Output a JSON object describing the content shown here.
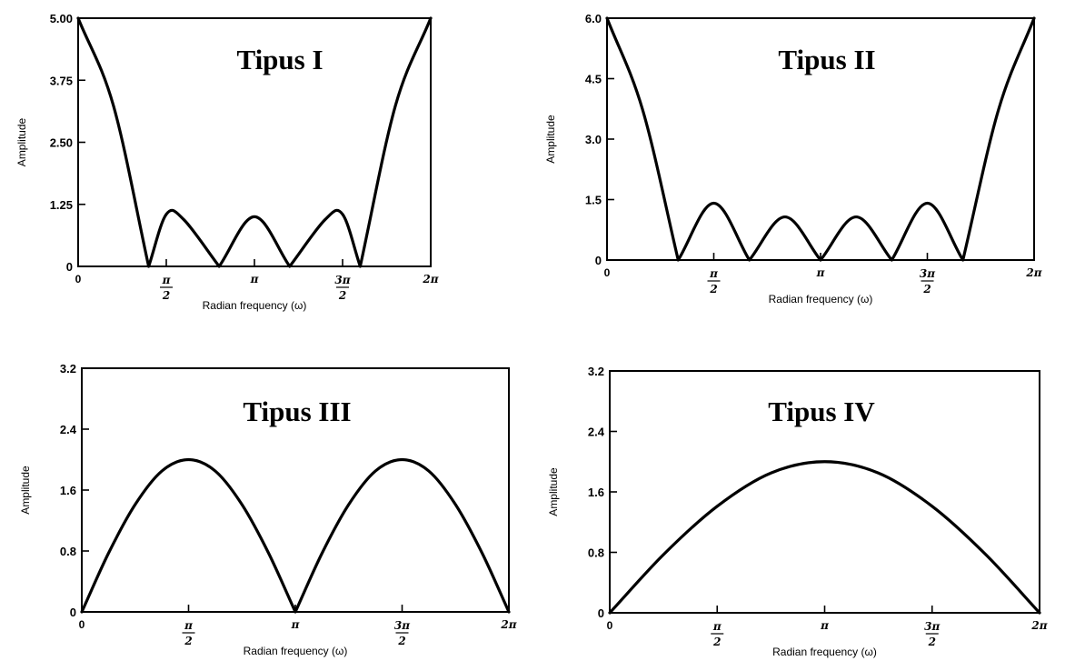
{
  "chart_data": [
    {
      "type": "line",
      "title": "Tipus I",
      "xlabel": "Radian frequency (ω)",
      "ylabel": "Amplitude",
      "xlim": [
        0,
        6.2832
      ],
      "ylim": [
        0,
        5.0
      ],
      "yticks": [
        "0",
        "1.25",
        "2.50",
        "3.75",
        "5.00"
      ],
      "xticks": [
        "0",
        "π/2",
        "π",
        "3π/2",
        "2π"
      ],
      "grid": false,
      "series": [
        {
          "x": [
            0,
            0.6283,
            1.2566,
            1.5708,
            1.885,
            2.5133,
            3.1416,
            3.7699,
            4.3982,
            4.7124,
            5.0265,
            5.6549,
            6.2832
          ],
          "y": [
            5.0,
            3.24,
            0.0,
            1.05,
            0.94,
            0.0,
            1.0,
            0.0,
            0.94,
            1.05,
            0.0,
            3.24,
            5.0
          ]
        }
      ]
    },
    {
      "type": "line",
      "title": "Tipus II",
      "xlabel": "Radian frequency (ω)",
      "ylabel": "Amplitude",
      "xlim": [
        0,
        6.2832
      ],
      "ylim": [
        0,
        6.0
      ],
      "yticks": [
        "0",
        "1.5",
        "3.0",
        "4.5",
        "6.0"
      ],
      "xticks": [
        "0",
        "π/2",
        "π",
        "3π/2",
        "2π"
      ],
      "grid": false,
      "series": [
        {
          "x": [
            0,
            0.5236,
            1.0472,
            1.5708,
            2.0944,
            2.618,
            3.1416,
            3.6652,
            4.1888,
            4.7124,
            5.236,
            5.7596,
            6.2832
          ],
          "y": [
            6.0,
            3.73,
            0.0,
            1.41,
            0.0,
            1.07,
            0.0,
            1.07,
            0.0,
            1.41,
            0.0,
            3.73,
            6.0
          ]
        }
      ]
    },
    {
      "type": "line",
      "title": "Tipus III",
      "xlabel": "Radian frequency (ω)",
      "ylabel": "Amplitude",
      "xlim": [
        0,
        6.2832
      ],
      "ylim": [
        0,
        3.2
      ],
      "yticks": [
        "0",
        "0.8",
        "1.6",
        "2.4",
        "3.2"
      ],
      "xticks": [
        "0",
        "π/2",
        "π",
        "3π/2",
        "2π"
      ],
      "grid": false,
      "series": [
        {
          "x": [
            0,
            0.3927,
            0.7854,
            1.1781,
            1.5708,
            1.9635,
            2.3562,
            2.7489,
            3.1416,
            3.5343,
            3.927,
            4.3197,
            4.7124,
            5.1051,
            5.4978,
            5.8905,
            6.2832
          ],
          "y": [
            0.0,
            0.77,
            1.41,
            1.85,
            2.0,
            1.85,
            1.41,
            0.77,
            0.0,
            0.77,
            1.41,
            1.85,
            2.0,
            1.85,
            1.41,
            0.77,
            0.0
          ]
        }
      ]
    },
    {
      "type": "line",
      "title": "Tipus IV",
      "xlabel": "Radian frequency (ω)",
      "ylabel": "Amplitude",
      "xlim": [
        0,
        6.2832
      ],
      "ylim": [
        0,
        3.2
      ],
      "yticks": [
        "0",
        "0.8",
        "1.6",
        "2.4",
        "3.2"
      ],
      "xticks": [
        "0",
        "π/2",
        "π",
        "3π/2",
        "2π"
      ],
      "grid": false,
      "series": [
        {
          "x": [
            0,
            0.7854,
            1.5708,
            2.3562,
            3.1416,
            3.927,
            4.7124,
            5.4978,
            6.2832
          ],
          "y": [
            0.0,
            0.77,
            1.41,
            1.85,
            2.0,
            1.85,
            1.41,
            0.77,
            0.0
          ]
        }
      ]
    }
  ]
}
